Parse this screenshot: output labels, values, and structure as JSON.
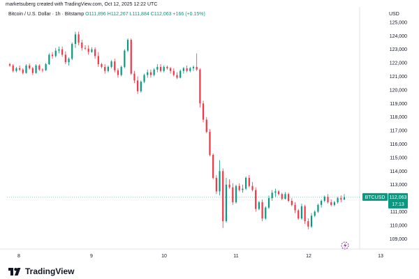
{
  "header": {
    "text": "marketsuberg created with TradingView.com, Oct 12, 2025 12:22 UTC"
  },
  "symbol": {
    "name": "Bitcoin / U.S. Dollar · 1h · Bitstamp",
    "open": "O111,896",
    "high": "H112,267",
    "low": "L111,884",
    "close": "C112,063",
    "change": "+166 (+0.15%)"
  },
  "currency_label": "USD",
  "price_label": {
    "ticker": "BTCUSD",
    "price": "112,063",
    "countdown": "17:13"
  },
  "brand": {
    "name": "TradingView"
  },
  "colors": {
    "up": "#089981",
    "down": "#f23645",
    "last_line": "#089981"
  },
  "chart_data": {
    "type": "candlestick",
    "x_ticks": [
      "8",
      "9",
      "10",
      "11",
      "12",
      "13"
    ],
    "y_ticks": [
      109000,
      110000,
      111000,
      112000,
      113000,
      114000,
      115000,
      116000,
      117000,
      118000,
      119000,
      120000,
      121000,
      122000,
      123000,
      124000,
      125000
    ],
    "ylim": [
      108500,
      125200
    ],
    "last_price": 112063,
    "candles": [
      [
        121900,
        122000,
        121700,
        121800
      ],
      [
        121800,
        121900,
        121300,
        121400
      ],
      [
        121400,
        121700,
        121300,
        121600
      ],
      [
        121600,
        121800,
        121400,
        121500
      ],
      [
        121500,
        121600,
        121150,
        121250
      ],
      [
        121250,
        121900,
        121200,
        121800
      ],
      [
        121800,
        121950,
        121500,
        121600
      ],
      [
        121600,
        121700,
        121100,
        121250
      ],
      [
        121250,
        121900,
        121200,
        121800
      ],
      [
        121800,
        121900,
        121400,
        121500
      ],
      [
        121500,
        121600,
        121300,
        121450
      ],
      [
        121450,
        122000,
        121400,
        121900
      ],
      [
        121900,
        122700,
        121850,
        122600
      ],
      [
        122600,
        122800,
        122300,
        122500
      ],
      [
        122500,
        123100,
        122400,
        122900
      ],
      [
        122900,
        123200,
        122700,
        123000
      ],
      [
        123000,
        123200,
        122450,
        122600
      ],
      [
        122600,
        122850,
        121900,
        122050
      ],
      [
        122050,
        122400,
        121800,
        122300
      ],
      [
        122300,
        123500,
        122200,
        123400
      ],
      [
        123400,
        124300,
        123100,
        124100
      ],
      [
        124100,
        124300,
        123300,
        123500
      ],
      [
        123500,
        123700,
        122900,
        123100
      ],
      [
        123100,
        123300,
        122950,
        123050
      ],
      [
        123050,
        123300,
        122600,
        122800
      ],
      [
        122800,
        123150,
        122750,
        123000
      ],
      [
        123000,
        123150,
        122300,
        122500
      ],
      [
        122500,
        122800,
        121700,
        121900
      ],
      [
        121900,
        122000,
        121600,
        121700
      ],
      [
        121700,
        121900,
        121200,
        121400
      ],
      [
        121400,
        121800,
        121300,
        121700
      ],
      [
        121700,
        122200,
        121600,
        122100
      ],
      [
        122100,
        122300,
        121300,
        121450
      ],
      [
        121450,
        121600,
        120900,
        121100
      ],
      [
        121100,
        121800,
        121000,
        121700
      ],
      [
        121700,
        123000,
        121600,
        122900
      ],
      [
        122900,
        123800,
        122800,
        123700
      ],
      [
        123700,
        123800,
        121100,
        121200
      ],
      [
        121200,
        121400,
        120500,
        120700
      ],
      [
        120700,
        121000,
        119700,
        119900
      ],
      [
        119900,
        120700,
        119800,
        120600
      ],
      [
        120600,
        121200,
        120500,
        121100
      ],
      [
        121100,
        121500,
        120900,
        121300
      ],
      [
        121300,
        121500,
        120900,
        121100
      ],
      [
        121100,
        121600,
        121000,
        121500
      ],
      [
        121500,
        121900,
        121300,
        121700
      ],
      [
        121700,
        121900,
        121300,
        121400
      ],
      [
        121400,
        121800,
        121300,
        121700
      ],
      [
        121700,
        121800,
        121500,
        121600
      ],
      [
        121600,
        121700,
        121200,
        121400
      ],
      [
        121400,
        121600,
        121000,
        121100
      ],
      [
        121100,
        121300,
        120800,
        120900
      ],
      [
        120900,
        121500,
        120850,
        121400
      ],
      [
        121400,
        121700,
        121200,
        121600
      ],
      [
        121600,
        121800,
        121300,
        121400
      ],
      [
        121400,
        121700,
        121300,
        121600
      ],
      [
        121600,
        121800,
        121400,
        121700
      ],
      [
        121700,
        122700,
        121400,
        121500
      ],
      [
        121500,
        121600,
        118700,
        119000
      ],
      [
        119000,
        119200,
        117600,
        117800
      ],
      [
        117800,
        118000,
        116800,
        116900
      ],
      [
        116900,
        117100,
        115100,
        115200
      ],
      [
        115200,
        115300,
        113400,
        113500
      ],
      [
        113500,
        113700,
        112300,
        112500
      ],
      [
        112500,
        114800,
        112200,
        114000
      ],
      [
        114000,
        114200,
        109800,
        110300
      ],
      [
        110300,
        113500,
        110200,
        113000
      ],
      [
        113000,
        113400,
        112700,
        112800
      ],
      [
        112800,
        113100,
        111500,
        111700
      ],
      [
        111700,
        113000,
        111600,
        112900
      ],
      [
        112900,
        113100,
        112500,
        112600
      ],
      [
        112600,
        113000,
        112400,
        112700
      ],
      [
        112700,
        113600,
        112600,
        113500
      ],
      [
        113500,
        113700,
        112800,
        112900
      ],
      [
        112900,
        113200,
        112500,
        112600
      ],
      [
        112600,
        112800,
        111000,
        111200
      ],
      [
        111200,
        111800,
        111100,
        111700
      ],
      [
        111700,
        111900,
        110300,
        110500
      ],
      [
        110500,
        111400,
        110400,
        111300
      ],
      [
        111300,
        112200,
        111200,
        112000
      ],
      [
        112000,
        112600,
        111800,
        112400
      ],
      [
        112400,
        112700,
        112100,
        112500
      ],
      [
        112500,
        112600,
        112200,
        112300
      ],
      [
        112300,
        112400,
        111850,
        111950
      ],
      [
        111950,
        112450,
        111900,
        112300
      ],
      [
        112300,
        112400,
        111700,
        111800
      ],
      [
        111800,
        112000,
        111400,
        111500
      ],
      [
        111500,
        111700,
        110900,
        111100
      ],
      [
        111100,
        111200,
        110400,
        110500
      ],
      [
        110500,
        111600,
        110400,
        111400
      ],
      [
        111400,
        111500,
        110100,
        110300
      ],
      [
        110300,
        110500,
        109700,
        109900
      ],
      [
        109900,
        110900,
        109800,
        110700
      ],
      [
        110700,
        111100,
        110600,
        111000
      ],
      [
        111000,
        111600,
        110900,
        111500
      ],
      [
        111500,
        111900,
        111300,
        111800
      ],
      [
        111800,
        112200,
        111700,
        112100
      ],
      [
        112100,
        112300,
        111600,
        111700
      ],
      [
        111700,
        111900,
        111400,
        111500
      ],
      [
        111500,
        111800,
        111400,
        111700
      ],
      [
        111700,
        112100,
        111600,
        112000
      ],
      [
        112000,
        112200,
        111700,
        111900
      ],
      [
        111900,
        112300,
        111850,
        112063
      ]
    ]
  }
}
